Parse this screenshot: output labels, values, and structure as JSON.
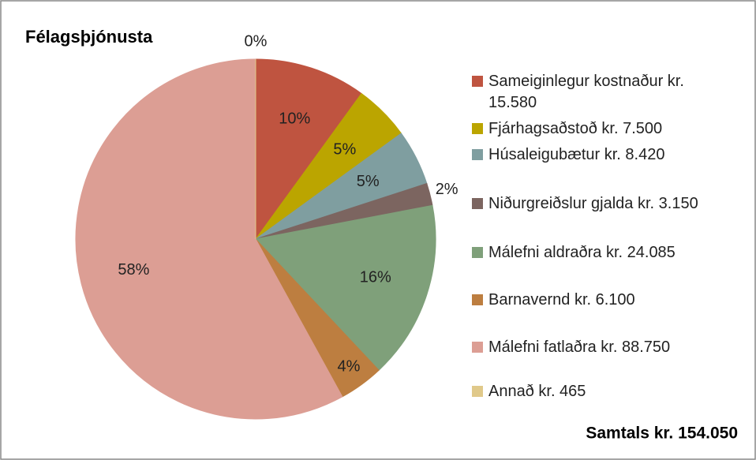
{
  "chart_data": {
    "type": "pie",
    "title": "Félagsþjónusta",
    "categories": [
      "Sameiginlegur kostnaður kr. 15.580",
      "Fjárhagsaðstoð kr. 7.500",
      "Húsaleigubætur kr. 8.420",
      "Niðurgreiðslur gjalda kr. 3.150",
      "Málefni aldraðra kr. 24.085",
      "Barnavernd kr. 6.100",
      "Málefni fatlaðra kr. 88.750",
      "Annað kr. 465"
    ],
    "values": [
      10,
      5,
      5,
      2,
      16,
      4,
      58,
      0
    ],
    "value_labels": [
      "10%",
      "5%",
      "5%",
      "2%",
      "16%",
      "4%",
      "58%",
      "0%"
    ],
    "colors": [
      "#bf5440",
      "#bba500",
      "#7f9ea0",
      "#7c6560",
      "#7fa07a",
      "#bd7e40",
      "#dc9e94",
      "#e0c98a"
    ],
    "total_label": "Samtals kr. 154.050"
  }
}
